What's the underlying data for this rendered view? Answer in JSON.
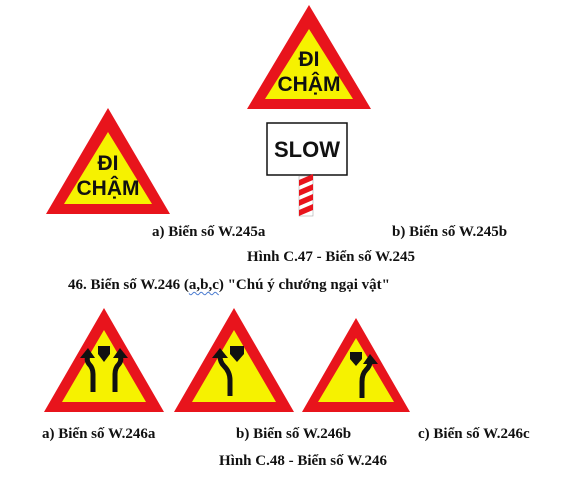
{
  "signs": {
    "w245b_top": {
      "line1": "ĐI",
      "line2": "CHẬM"
    },
    "w245a": {
      "line1": "ĐI",
      "line2": "CHẬM"
    },
    "w245b_plate": {
      "text": "SLOW"
    }
  },
  "captions": {
    "w245a": "a) Biển số W.245a",
    "w245b": "b) Biển số W.245b",
    "fig47": "Hình C.47 - Biển số W.245",
    "sec46_prefix": "46. Biển số W.246 (",
    "sec46_abc": "a,b,c",
    "sec46_suffix": ") \"Chú ý chướng ngại vật\"",
    "w246a": "a) Biển số W.246a",
    "w246b": "b) Biển số W.246b",
    "w246c": "c) Biển số W.246c",
    "fig48": "Hình C.48 - Biển số W.246"
  },
  "colors": {
    "border_red": "#e8141c",
    "fill_yellow": "#f6f200",
    "symbol_black": "#111111"
  }
}
